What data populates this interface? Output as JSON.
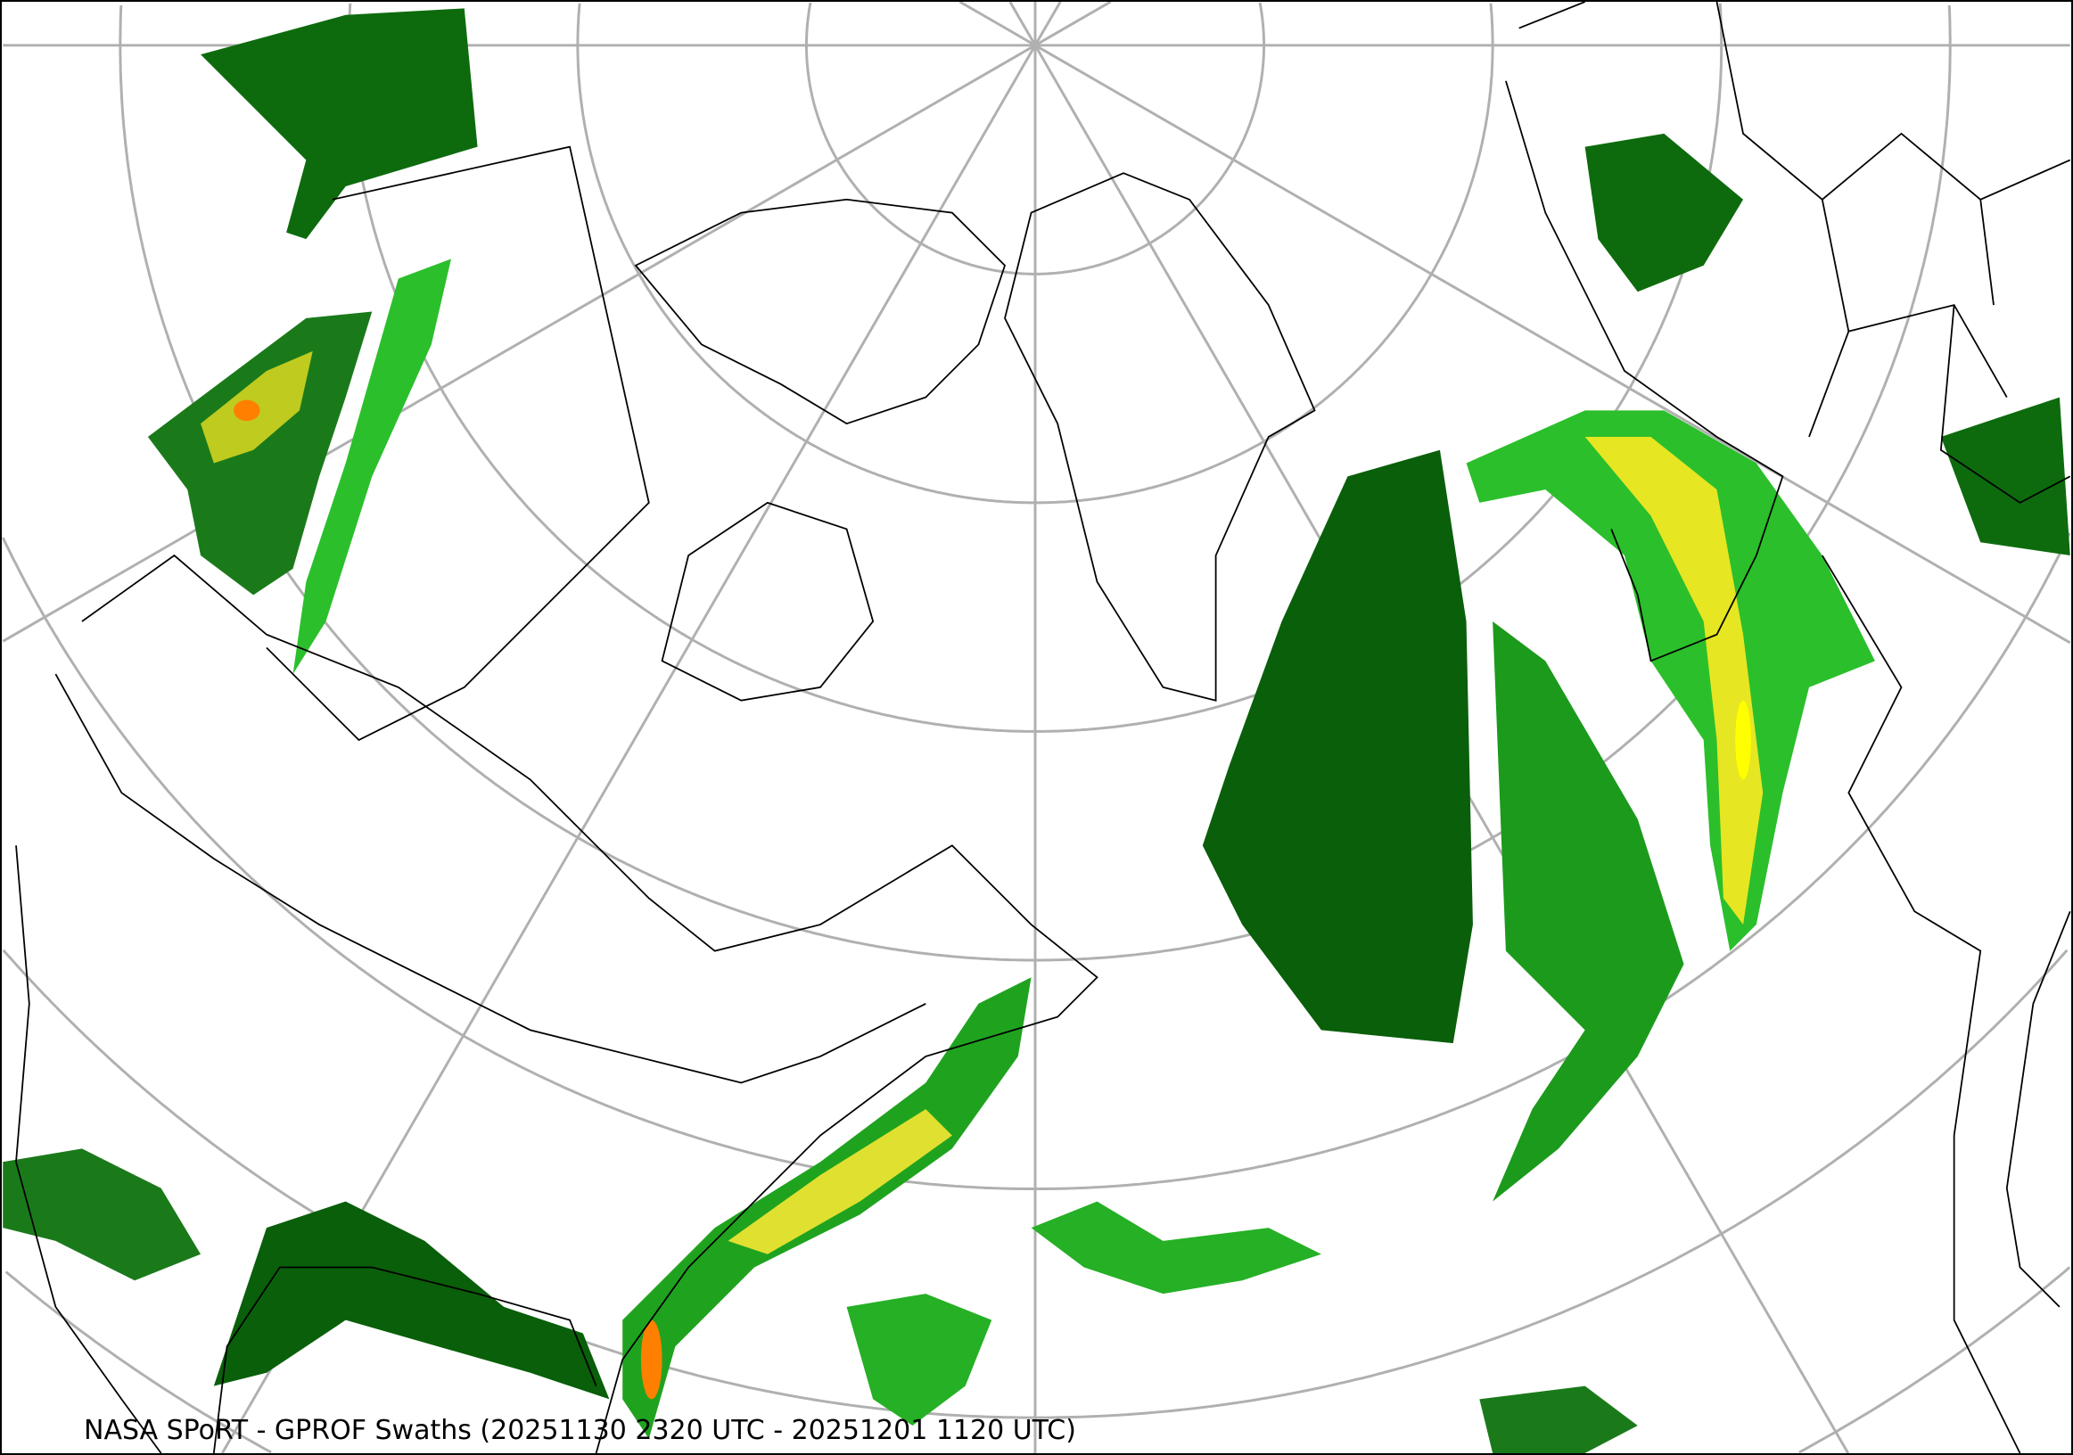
{
  "title": "NASA SPoRT - GPROF Swaths (20251130 2320 UTC - 20251201 1120 UTC)",
  "map": {
    "projection": "polar stereographic (north pole)",
    "colors": {
      "background": "#ffffff",
      "graticule": "#b0b0b0",
      "boundaries": "#000000",
      "precip_light": "#005a00",
      "precip_moderate": "#1fa31f",
      "precip_bright": "#33ff33",
      "precip_heavy": "#ffff00",
      "precip_intense": "#ff8000",
      "precip_extreme": "#e00000"
    }
  }
}
